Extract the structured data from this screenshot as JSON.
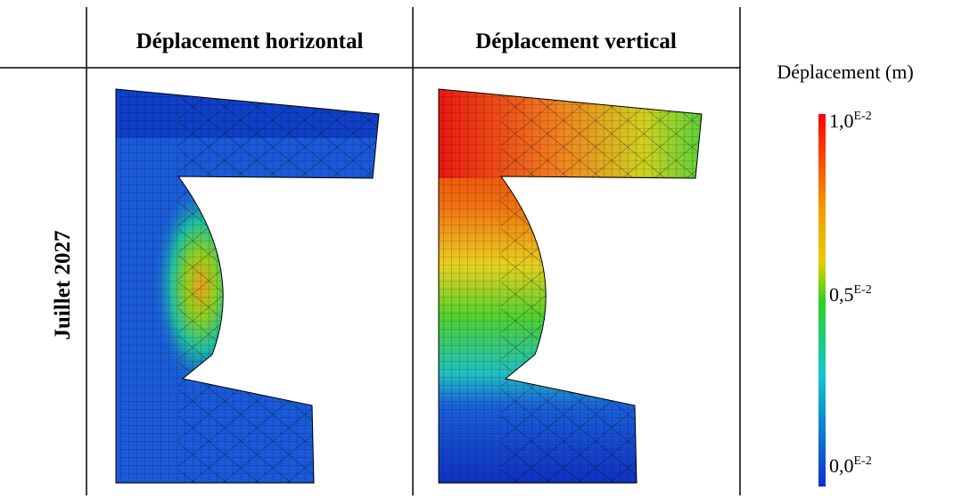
{
  "table": {
    "headers": [
      "Déplacement horizontal",
      "Déplacement vertical"
    ],
    "row_label": "Juillet 2027"
  },
  "legend": {
    "title": "Déplacement (m)",
    "labels": [
      {
        "base": "1,0",
        "exp": "E-2"
      },
      {
        "base": "0,5",
        "exp": "E-2"
      },
      {
        "base": "0,0",
        "exp": "E-2"
      }
    ]
  }
}
